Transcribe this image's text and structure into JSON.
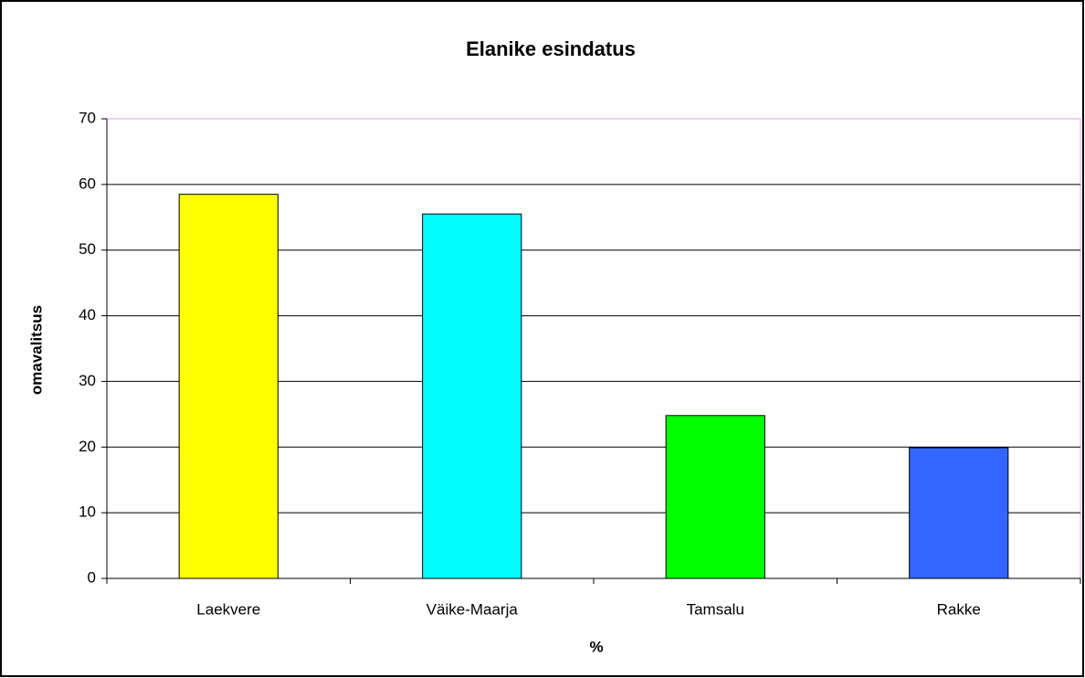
{
  "chart_data": {
    "type": "bar",
    "title": "Elanike esindatus",
    "x_label": "%",
    "y_label": "omavalitsus",
    "categories": [
      "Laekvere",
      "Väike-Maarja",
      "Tamsalu",
      "Rakke"
    ],
    "values": [
      58.5,
      55.5,
      24.8,
      19.9
    ],
    "colors": [
      "#ffff00",
      "#00ffff",
      "#00ff00",
      "#3366ff"
    ],
    "ylim": [
      0,
      70
    ],
    "yticks": [
      0,
      10,
      20,
      30,
      40,
      50,
      60,
      70
    ],
    "grid": true
  }
}
